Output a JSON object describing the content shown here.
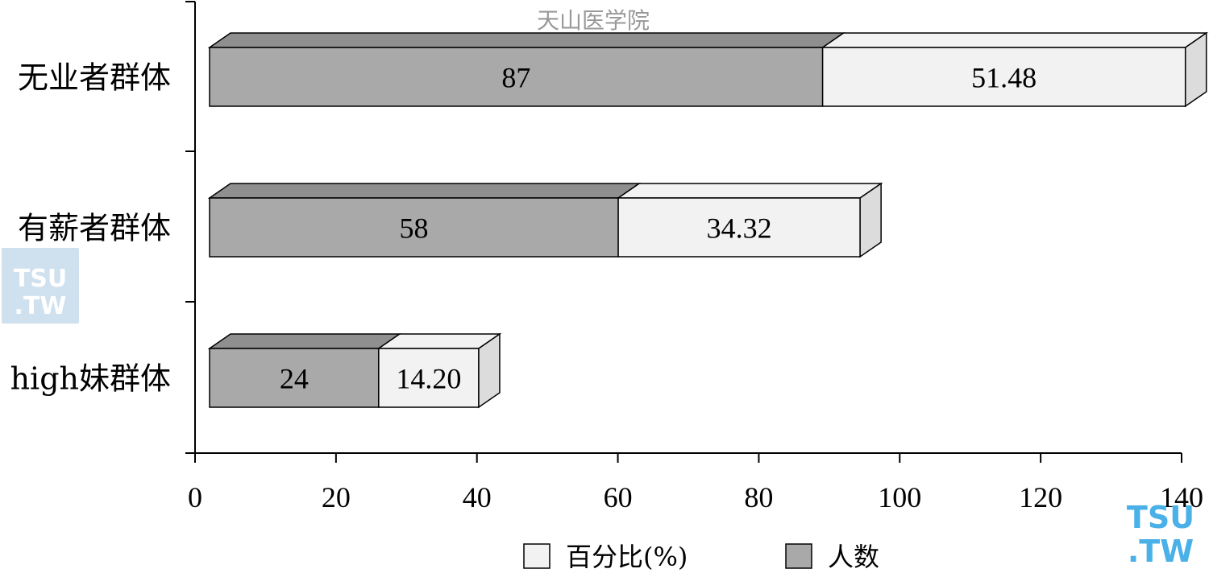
{
  "watermarks": {
    "top_text": "天山医学院",
    "logo_text": "TSU\n.TW"
  },
  "colors": {
    "people_fill": "#a9a9a9",
    "people_top": "#8f8f8f",
    "percent_fill": "#f2f2f2",
    "percent_side": "#dcdcdc",
    "axis": "#000000"
  },
  "chart_data": {
    "type": "bar",
    "orientation": "horizontal",
    "stacked": true,
    "categories": [
      "无业者群体",
      "有薪者群体",
      "high妹群体"
    ],
    "series": [
      {
        "name": "人数",
        "values": [
          87,
          58,
          24
        ],
        "color": "#a9a9a9"
      },
      {
        "name": "百分比(%)",
        "values": [
          51.48,
          34.32,
          14.2
        ],
        "color": "#f2f2f2"
      }
    ],
    "data_labels": [
      [
        "87",
        "58",
        "24"
      ],
      [
        "51.48",
        "34.32",
        "14.20"
      ]
    ],
    "xlim": [
      0,
      140
    ],
    "xticks": [
      "0",
      "20",
      "40",
      "60",
      "80",
      "100",
      "120",
      "140"
    ],
    "legend": {
      "position": "bottom",
      "items": [
        {
          "label": "百分比(%)",
          "color": "#f2f2f2"
        },
        {
          "label": "人数",
          "color": "#a9a9a9"
        }
      ]
    },
    "grid": false,
    "style": "3d"
  }
}
